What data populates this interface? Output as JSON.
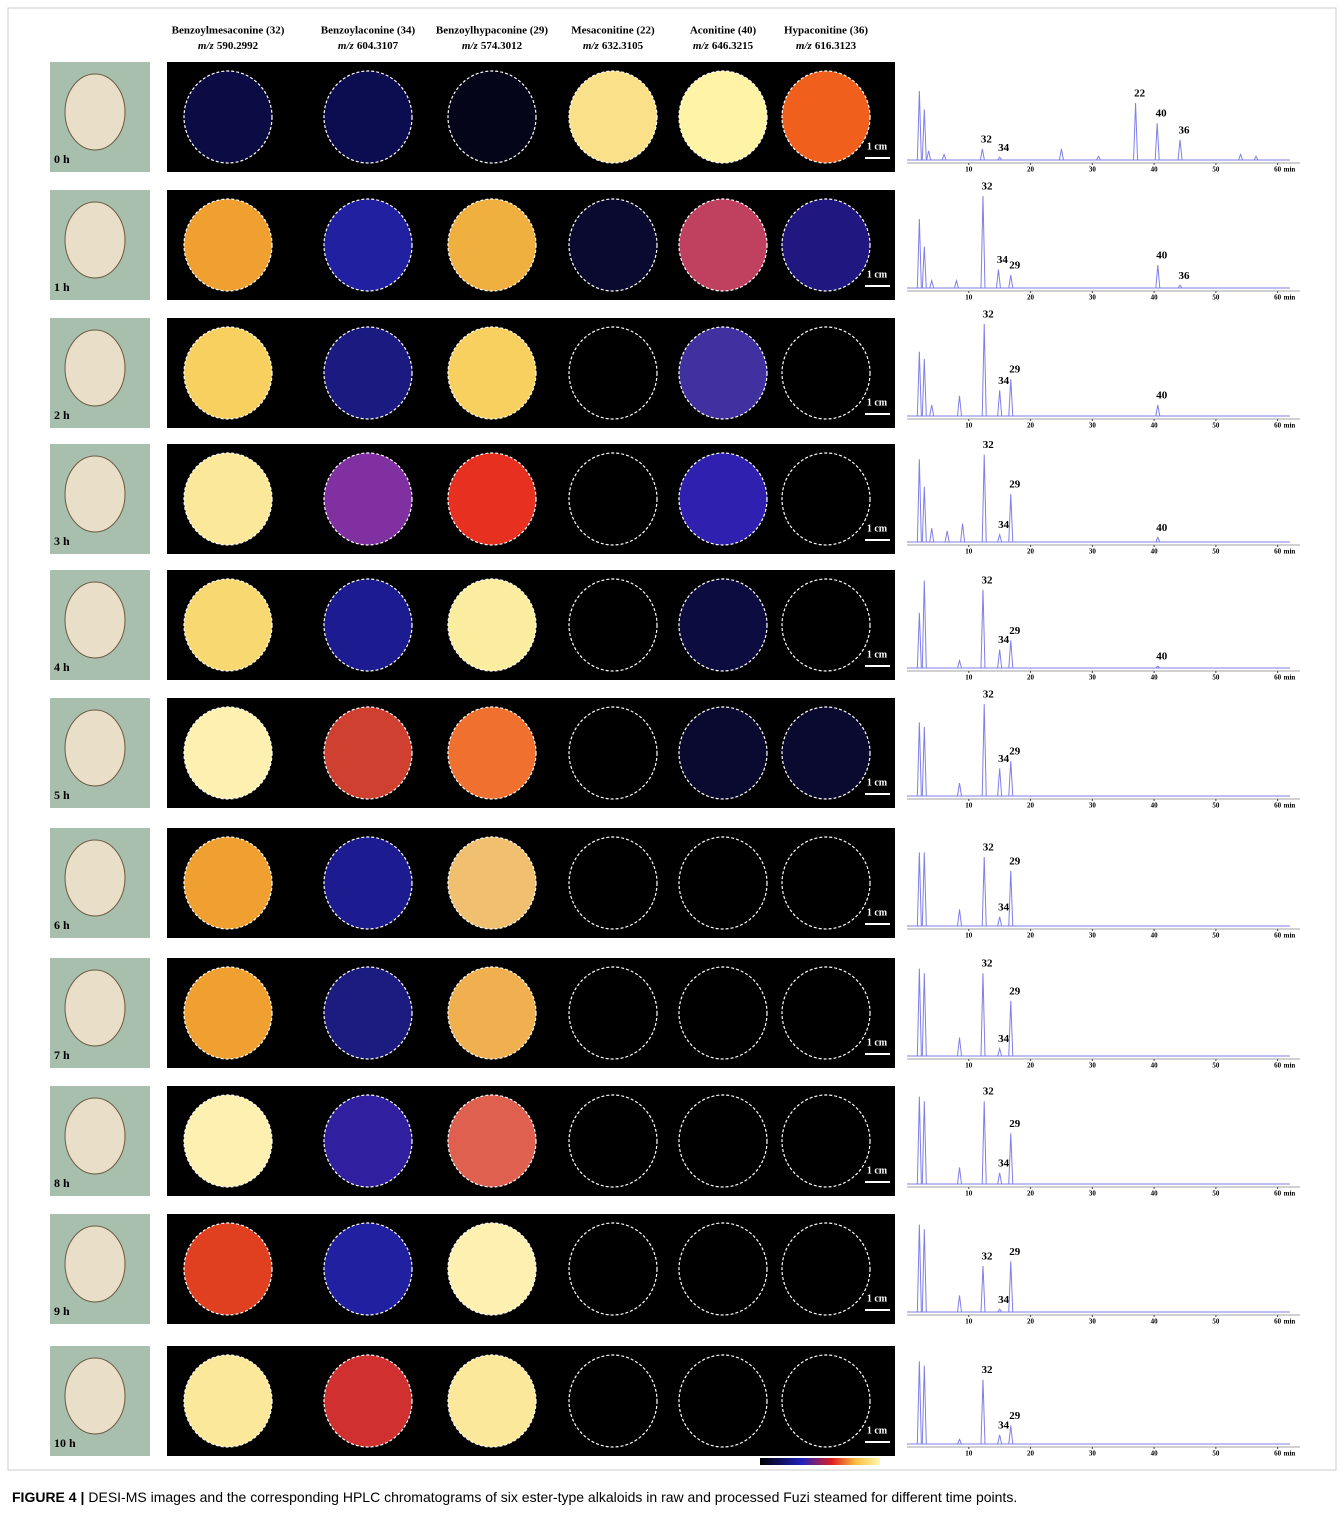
{
  "columns": [
    {
      "name": "Benzoylmesaconine (32)",
      "mz": "590.2992"
    },
    {
      "name": "Benzoylaconine (34)",
      "mz": "604.3107"
    },
    {
      "name": "Benzoylhypaconine (29)",
      "mz": "574.3012"
    },
    {
      "name": "Mesaconitine (22)",
      "mz": "632.3105"
    },
    {
      "name": "Aconitine (40)",
      "mz": "646.3215"
    },
    {
      "name": "Hypaconitine (36)",
      "mz": "616.3123"
    }
  ],
  "mz_prefix": "m/z",
  "scale_bar": "1 cm",
  "chromatogram": {
    "xlim": [
      0,
      62
    ],
    "ylim": [
      0,
      100
    ],
    "xticks": [
      10,
      20,
      30,
      40,
      50,
      60
    ],
    "unit": "min",
    "color": "#7f7fe8"
  },
  "rows": [
    {
      "label": "0 h",
      "image_colors": [
        "#0c0c44",
        "#0c0c50",
        "#05051a",
        "#fbe08a",
        "#fff3a6",
        "#f0601c"
      ],
      "peaks": [
        {
          "time": 2,
          "height": 75
        },
        {
          "time": 2.8,
          "height": 55
        },
        {
          "time": 3.5,
          "height": 10
        },
        {
          "time": 6,
          "height": 6
        },
        {
          "time": 12.2,
          "height": 12,
          "label": "32"
        },
        {
          "time": 15,
          "height": 3,
          "label": "34"
        },
        {
          "time": 25,
          "height": 12
        },
        {
          "time": 31,
          "height": 4
        },
        {
          "time": 37,
          "height": 62,
          "label": "22"
        },
        {
          "time": 40.5,
          "height": 40,
          "label": "40"
        },
        {
          "time": 44.2,
          "height": 22,
          "label": "36"
        },
        {
          "time": 54,
          "height": 6
        },
        {
          "time": 56.5,
          "height": 4
        }
      ]
    },
    {
      "label": "1 h",
      "image_colors": [
        "#f0a030",
        "#2020a0",
        "#f0b040",
        "#0a0a30",
        "#c04060",
        "#201880"
      ],
      "peaks": [
        {
          "time": 2,
          "height": 75
        },
        {
          "time": 2.8,
          "height": 45
        },
        {
          "time": 4,
          "height": 8
        },
        {
          "time": 8,
          "height": 8
        },
        {
          "time": 12.3,
          "height": 100,
          "label": "32"
        },
        {
          "time": 14.8,
          "height": 20,
          "label": "34"
        },
        {
          "time": 16.8,
          "height": 14,
          "label": "29"
        },
        {
          "time": 40.6,
          "height": 25,
          "label": "40"
        },
        {
          "time": 44.2,
          "height": 3,
          "label": "36"
        }
      ]
    },
    {
      "label": "2 h",
      "image_colors": [
        "#f8d060",
        "#1a1a80",
        "#f8d060",
        "#000000",
        "#4030a0",
        "#000000"
      ],
      "peaks": [
        {
          "time": 2,
          "height": 70
        },
        {
          "time": 2.8,
          "height": 62
        },
        {
          "time": 4,
          "height": 12
        },
        {
          "time": 8.5,
          "height": 22
        },
        {
          "time": 12.5,
          "height": 100,
          "label": "32"
        },
        {
          "time": 15,
          "height": 28,
          "label": "34"
        },
        {
          "time": 16.8,
          "height": 40,
          "label": "29"
        },
        {
          "time": 40.6,
          "height": 12,
          "label": "40"
        }
      ]
    },
    {
      "label": "3 h",
      "image_colors": [
        "#fbe89a",
        "#8030a0",
        "#e83020",
        "#000000",
        "#3020b0",
        "#000000"
      ],
      "peaks": [
        {
          "time": 2,
          "height": 90
        },
        {
          "time": 2.8,
          "height": 60
        },
        {
          "time": 4,
          "height": 15
        },
        {
          "time": 6.5,
          "height": 12
        },
        {
          "time": 9,
          "height": 20
        },
        {
          "time": 12.5,
          "height": 95,
          "label": "32"
        },
        {
          "time": 15,
          "height": 8,
          "label": "34"
        },
        {
          "time": 16.8,
          "height": 52,
          "label": "29"
        },
        {
          "time": 40.6,
          "height": 5,
          "label": "40"
        }
      ]
    },
    {
      "label": "4 h",
      "image_colors": [
        "#f8d870",
        "#1c1c90",
        "#fbeda0",
        "#000000",
        "#0c0c40",
        "#000000"
      ],
      "peaks": [
        {
          "time": 2,
          "height": 60
        },
        {
          "time": 2.8,
          "height": 95
        },
        {
          "time": 8.5,
          "height": 8
        },
        {
          "time": 12.3,
          "height": 85,
          "label": "32"
        },
        {
          "time": 15,
          "height": 20,
          "label": "34"
        },
        {
          "time": 16.8,
          "height": 30,
          "label": "29"
        },
        {
          "time": 40.6,
          "height": 2,
          "label": "40"
        }
      ]
    },
    {
      "label": "5 h",
      "image_colors": [
        "#fdf0b0",
        "#d04030",
        "#f07030",
        "#000000",
        "#0a0a30",
        "#0a0a30"
      ],
      "peaks": [
        {
          "time": 2,
          "height": 80
        },
        {
          "time": 2.8,
          "height": 75
        },
        {
          "time": 8.5,
          "height": 14
        },
        {
          "time": 12.5,
          "height": 100,
          "label": "32"
        },
        {
          "time": 15,
          "height": 30,
          "label": "34"
        },
        {
          "time": 16.8,
          "height": 38,
          "label": "29"
        }
      ]
    },
    {
      "label": "6 h",
      "image_colors": [
        "#f0a030",
        "#1c1c90",
        "#f0c070",
        "#000000",
        "#000000",
        "#000000"
      ],
      "peaks": [
        {
          "time": 2,
          "height": 80
        },
        {
          "time": 2.8,
          "height": 80
        },
        {
          "time": 8.5,
          "height": 18
        },
        {
          "time": 12.5,
          "height": 75,
          "label": "32"
        },
        {
          "time": 15,
          "height": 10,
          "label": "34"
        },
        {
          "time": 16.8,
          "height": 60,
          "label": "29"
        }
      ]
    },
    {
      "label": "7 h",
      "image_colors": [
        "#f0a030",
        "#1c1c80",
        "#f0b050",
        "#000000",
        "#000000",
        "#000000"
      ],
      "peaks": [
        {
          "time": 2,
          "height": 95
        },
        {
          "time": 2.8,
          "height": 90
        },
        {
          "time": 8.5,
          "height": 20
        },
        {
          "time": 12.3,
          "height": 90,
          "label": "32"
        },
        {
          "time": 15,
          "height": 8,
          "label": "34"
        },
        {
          "time": 16.8,
          "height": 60,
          "label": "29"
        }
      ]
    },
    {
      "label": "8 h",
      "image_colors": [
        "#fdf0b0",
        "#3020a0",
        "#e06050",
        "#000000",
        "#000000",
        "#000000"
      ],
      "peaks": [
        {
          "time": 2,
          "height": 95
        },
        {
          "time": 2.8,
          "height": 90
        },
        {
          "time": 8.5,
          "height": 18
        },
        {
          "time": 12.5,
          "height": 90,
          "label": "32"
        },
        {
          "time": 15,
          "height": 12,
          "label": "34"
        },
        {
          "time": 16.8,
          "height": 55,
          "label": "29"
        }
      ]
    },
    {
      "label": "9 h",
      "image_colors": [
        "#e04020",
        "#2020a0",
        "#fdf0b0",
        "#000000",
        "#000000",
        "#000000"
      ],
      "peaks": [
        {
          "time": 2,
          "height": 95
        },
        {
          "time": 2.8,
          "height": 90
        },
        {
          "time": 8.5,
          "height": 18
        },
        {
          "time": 12.3,
          "height": 50,
          "label": "32"
        },
        {
          "time": 15,
          "height": 3,
          "label": "34"
        },
        {
          "time": 16.8,
          "height": 55,
          "label": "29"
        }
      ]
    },
    {
      "label": "10 h",
      "image_colors": [
        "#fbe89a",
        "#d03030",
        "#fbe89a",
        "#000000",
        "#000000",
        "#000000"
      ],
      "peaks": [
        {
          "time": 2,
          "height": 90
        },
        {
          "time": 2.8,
          "height": 85
        },
        {
          "time": 8.5,
          "height": 5
        },
        {
          "time": 12.3,
          "height": 70,
          "label": "32"
        },
        {
          "time": 15,
          "height": 10,
          "label": "34"
        },
        {
          "time": 16.8,
          "height": 20,
          "label": "29"
        }
      ]
    }
  ],
  "caption": {
    "label": "FIGURE 4 |",
    "text": "DESI-MS images and the corresponding HPLC chromatograms of six ester-type alkaloids in raw and processed Fuzi steamed for different time points."
  }
}
